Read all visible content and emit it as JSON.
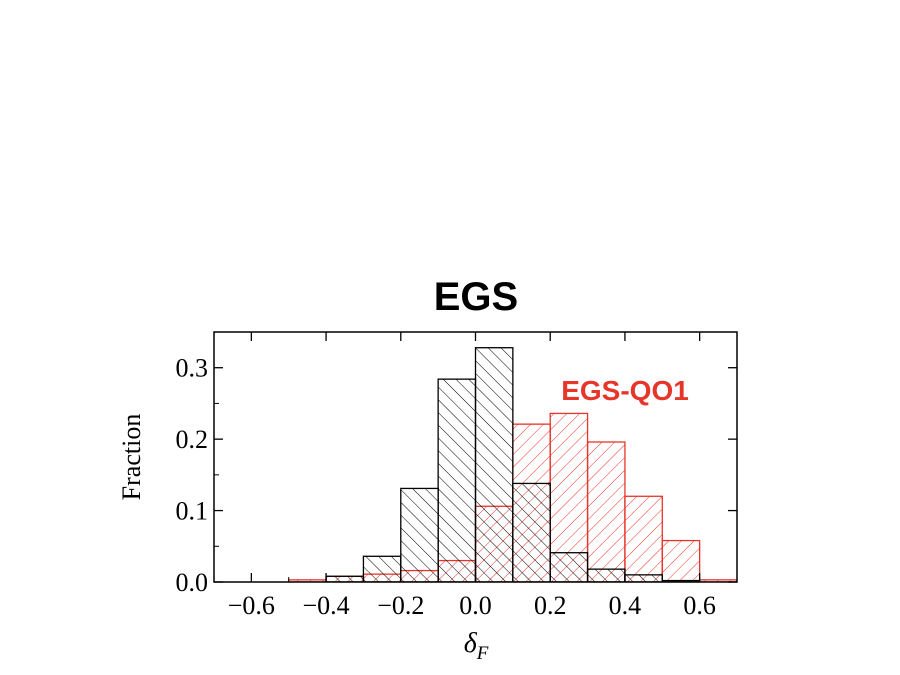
{
  "chart_data": {
    "type": "bar",
    "title": "EGS",
    "xlabel": "δ",
    "xlabel_subscript": "F",
    "ylabel": "Fraction",
    "xlim": [
      -0.7,
      0.7
    ],
    "ylim": [
      0.0,
      0.35
    ],
    "x_ticks": [
      -0.6,
      -0.4,
      -0.2,
      0.0,
      0.2,
      0.4,
      0.6
    ],
    "x_tick_labels": [
      "−0.6",
      "−0.4",
      "−0.2",
      "0.0",
      "0.2",
      "0.4",
      "0.6"
    ],
    "y_ticks": [
      0.0,
      0.1,
      0.2,
      0.3
    ],
    "y_tick_labels": [
      "0.0",
      "0.1",
      "0.2",
      "0.3"
    ],
    "grid": false,
    "bin_edges": [
      -0.5,
      -0.4,
      -0.3,
      -0.2,
      -0.1,
      0.0,
      0.1,
      0.2,
      0.3,
      0.4,
      0.5,
      0.6,
      0.7
    ],
    "series": [
      {
        "name": "",
        "color": "#000000",
        "hatch": "forward-diagonal",
        "values": [
          0.0,
          0.008,
          0.036,
          0.131,
          0.284,
          0.328,
          0.138,
          0.041,
          0.018,
          0.01,
          0.002,
          0.0
        ]
      },
      {
        "name": "EGS-QO1",
        "color": "#e8352a",
        "hatch": "back-diagonal",
        "values": [
          0.003,
          0.008,
          0.011,
          0.016,
          0.03,
          0.106,
          0.221,
          0.236,
          0.196,
          0.12,
          0.058,
          0.003
        ]
      }
    ],
    "annotations": [
      {
        "text": "EGS-QO1",
        "color": "#e8352a"
      }
    ]
  }
}
